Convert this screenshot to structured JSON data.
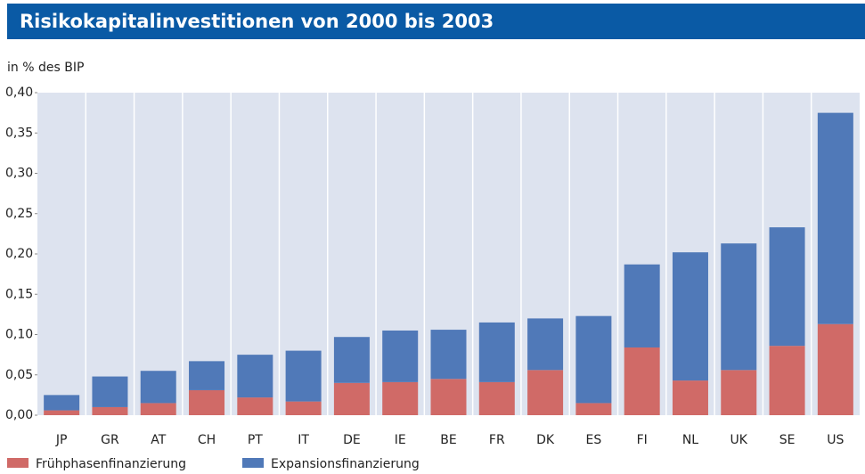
{
  "chart_data": {
    "type": "stacked_bar",
    "title": "Risikokapitalinvestitionen von 2000 bis 2003",
    "y_label": "in % des BIP",
    "categories": [
      "JP",
      "GR",
      "AT",
      "CH",
      "PT",
      "IT",
      "DE",
      "IE",
      "BE",
      "FR",
      "DK",
      "ES",
      "FI",
      "NL",
      "UK",
      "SE",
      "US"
    ],
    "series": [
      {
        "name": "Frühphasenfinanzierung",
        "color": "#d06a67",
        "values": [
          0.006,
          0.01,
          0.015,
          0.031,
          0.022,
          0.017,
          0.04,
          0.041,
          0.045,
          0.041,
          0.056,
          0.015,
          0.084,
          0.043,
          0.056,
          0.086,
          0.113
        ]
      },
      {
        "name": "Expansionsfinanzierung",
        "color": "#5079b8",
        "values": [
          0.019,
          0.038,
          0.04,
          0.036,
          0.053,
          0.063,
          0.057,
          0.064,
          0.061,
          0.074,
          0.064,
          0.108,
          0.103,
          0.159,
          0.157,
          0.147,
          0.262
        ]
      }
    ],
    "ylim": [
      0,
      0.4
    ],
    "yticks": [
      {
        "value": 0,
        "label": "0,00"
      },
      {
        "value": 0.05,
        "label": "0,05"
      },
      {
        "value": 0.1,
        "label": "0,10"
      },
      {
        "value": 0.15,
        "label": "0,15"
      },
      {
        "value": 0.2,
        "label": "0,20"
      },
      {
        "value": 0.25,
        "label": "0,25"
      },
      {
        "value": 0.3,
        "label": "0,30"
      },
      {
        "value": 0.35,
        "label": "0,35"
      },
      {
        "value": 0.4,
        "label": "0,40"
      }
    ]
  }
}
